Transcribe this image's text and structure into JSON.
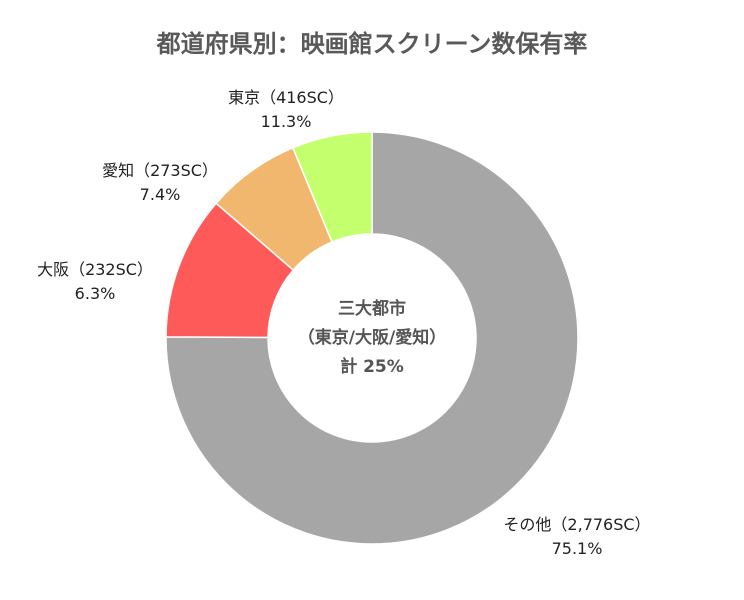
{
  "chart_data": {
    "type": "pie",
    "title": "都道府県別：映画館スクリーン数保有率",
    "donut": true,
    "categories": [
      "その他",
      "東京",
      "愛知",
      "大阪"
    ],
    "series": [
      {
        "values": [
          2776,
          416,
          273,
          232
        ],
        "percent_labels": [
          "75.1%",
          "11.3%",
          "7.4%",
          "6.3%"
        ]
      }
    ],
    "labels": [
      "その他（2,776SC）",
      "東京（416SC）",
      "愛知（273SC）",
      "大阪（232SC）"
    ],
    "colors": [
      "#a6a6a6",
      "#ff5a5a",
      "#f2b76f",
      "#c4ff6e"
    ],
    "center_text": [
      "三大都市",
      "（東京/大阪/愛知）",
      "計 25%"
    ]
  }
}
